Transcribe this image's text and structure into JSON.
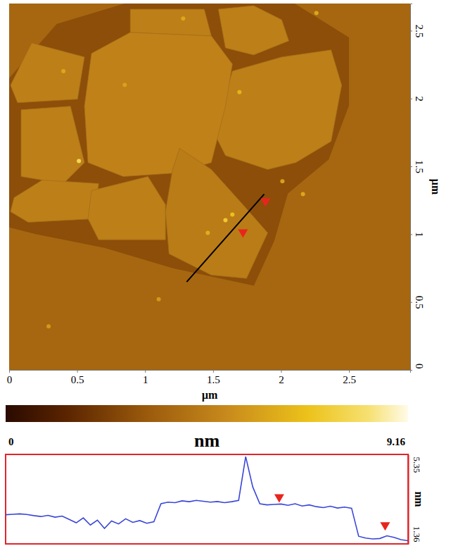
{
  "chart_data": [
    {
      "type": "image",
      "x_label": "µm",
      "y_label": "µm",
      "xlim": [
        0,
        2.95
      ],
      "ylim": [
        0,
        2.7
      ],
      "xticks": [
        0,
        0.5,
        1,
        1.5,
        2,
        2.5
      ],
      "yticks": [
        0,
        0.5,
        1,
        1.5,
        2,
        2.5
      ],
      "background_height": 3.7,
      "regions": [
        {
          "x": [
            0.0,
            0.0,
            0.35,
            0.85,
            1.5,
            2.1,
            2.5,
            2.5,
            2.35,
            2.05,
            1.95,
            1.8,
            1.2,
            0.7,
            0.2
          ],
          "y": [
            1.05,
            2.15,
            2.55,
            2.7,
            2.7,
            2.7,
            2.45,
            1.95,
            1.55,
            1.3,
            0.95,
            0.62,
            0.75,
            0.9,
            1.0
          ],
          "height": 2.8
        }
      ],
      "flakes": [
        {
          "x": [
            0.891,
            1.435,
            1.487,
            0.891
          ],
          "y": [
            2.658,
            2.658,
            2.461,
            2.487
          ],
          "height": 4.6
        },
        {
          "x": [
            1.539,
            1.798,
            2.005,
            2.057,
            1.798,
            1.591
          ],
          "y": [
            2.658,
            2.684,
            2.58,
            2.425,
            2.321,
            2.373
          ],
          "height": 4.6
        },
        {
          "x": [
            1.642,
            2.005,
            2.368,
            2.446,
            2.368,
            2.109,
            1.902,
            1.591,
            1.513
          ],
          "y": [
            2.202,
            2.306,
            2.358,
            2.098,
            1.684,
            1.528,
            1.477,
            1.58,
            1.736
          ],
          "height": 4.6
        },
        {
          "x": [
            0.606,
            0.891,
            1.487,
            1.642,
            1.591,
            1.487,
            1.228,
            0.839,
            0.58,
            0.554
          ],
          "y": [
            2.332,
            2.487,
            2.461,
            2.254,
            1.943,
            1.528,
            1.451,
            1.425,
            1.528,
            1.943
          ],
          "height": 4.7
        },
        {
          "x": [
            0.01,
            0.166,
            0.554,
            0.503,
            0.062
          ],
          "y": [
            2.098,
            2.409,
            2.306,
            1.995,
            1.969
          ],
          "height": 4.6
        },
        {
          "x": [
            0.088,
            0.451,
            0.554,
            0.399,
            0.088
          ],
          "y": [
            1.917,
            1.943,
            1.528,
            1.373,
            1.425
          ],
          "height": 4.6
        },
        {
          "x": [
            0.036,
            0.244,
            0.658,
            0.632,
            0.14,
            0.01
          ],
          "y": [
            1.269,
            1.399,
            1.373,
            1.114,
            1.088,
            1.166
          ],
          "height": 4.6
        },
        {
          "x": [
            0.606,
            1.021,
            1.15,
            1.15,
            0.658,
            0.58
          ],
          "y": [
            1.321,
            1.425,
            1.218,
            0.959,
            0.959,
            1.114
          ],
          "height": 4.6
        },
        {
          "x": [
            1.254,
            1.487,
            1.72,
            1.902,
            1.746,
            1.487,
            1.176,
            1.15,
            1.202
          ],
          "y": [
            1.632,
            1.477,
            1.218,
            1.01,
            0.674,
            0.699,
            0.855,
            1.166,
            1.477
          ],
          "height": 4.5
        }
      ],
      "particles": {
        "x": [
          1.591,
          1.642,
          0.513,
          1.461,
          0.399,
          1.694,
          2.161,
          2.01,
          1.28,
          0.29,
          2.26,
          0.85,
          1.1
        ],
        "y": [
          1.104,
          1.145,
          1.539,
          1.01,
          2.202,
          2.047,
          1.295,
          1.39,
          2.59,
          0.32,
          2.63,
          2.1,
          0.52
        ],
        "height": [
          7.2,
          6.8,
          7.8,
          6.2,
          6.0,
          6.4,
          6.0,
          5.8,
          6.0,
          5.5,
          6.0,
          5.8,
          5.5
        ]
      },
      "profile_line": {
        "x": [
          1.306,
          1.876
        ],
        "y": [
          0.648,
          1.295
        ]
      },
      "markers": {
        "x": [
          1.72,
          1.886
        ],
        "y": [
          0.974,
          1.202
        ],
        "color": "#e8251c"
      },
      "colorbar": {
        "range": [
          0,
          9.16
        ],
        "ticks": [
          0,
          9.16
        ],
        "label": "nm"
      }
    },
    {
      "type": "line",
      "y_label": "nm",
      "color": "#3a46d8",
      "tick_labels": "y",
      "xlim": [
        0,
        0.912
      ],
      "ylim": [
        1.36,
        5.35
      ],
      "yticks": [
        1.36,
        5.35
      ],
      "x": [
        0,
        0.016,
        0.032,
        0.048,
        0.064,
        0.08,
        0.096,
        0.112,
        0.128,
        0.144,
        0.16,
        0.176,
        0.192,
        0.208,
        0.224,
        0.24,
        0.256,
        0.272,
        0.288,
        0.304,
        0.32,
        0.336,
        0.352,
        0.368,
        0.384,
        0.4,
        0.416,
        0.432,
        0.448,
        0.464,
        0.48,
        0.496,
        0.512,
        0.528,
        0.544,
        0.56,
        0.576,
        0.592,
        0.608,
        0.624,
        0.64,
        0.656,
        0.672,
        0.688,
        0.704,
        0.72,
        0.736,
        0.752,
        0.768,
        0.784,
        0.8,
        0.816,
        0.832,
        0.848,
        0.864,
        0.88,
        0.896,
        0.912
      ],
      "values": [
        2.66,
        2.68,
        2.7,
        2.67,
        2.62,
        2.58,
        2.63,
        2.55,
        2.6,
        2.45,
        2.3,
        2.52,
        2.2,
        2.42,
        2.05,
        2.38,
        2.25,
        2.48,
        2.32,
        2.4,
        2.28,
        2.35,
        3.15,
        3.22,
        3.2,
        3.28,
        3.24,
        3.3,
        3.26,
        3.22,
        3.25,
        3.2,
        3.24,
        3.3,
        5.25,
        3.9,
        3.15,
        3.1,
        3.12,
        3.14,
        3.08,
        3.15,
        3.05,
        3.1,
        3.02,
        2.98,
        3.04,
        2.96,
        3.0,
        2.95,
        1.7,
        1.62,
        1.58,
        1.6,
        1.72,
        1.65,
        1.55,
        1.5
      ],
      "markers": {
        "x": [
          0.62,
          0.86
        ],
        "y": [
          3.2,
          1.95
        ],
        "color": "#e8251c"
      }
    }
  ]
}
